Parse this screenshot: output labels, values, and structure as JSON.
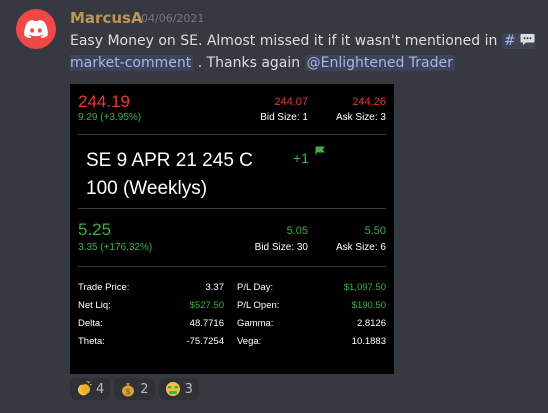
{
  "message": {
    "username": "MarcusA",
    "timestamp": "04/06/2021",
    "text_before": "Easy Money on SE. Almost missed it if it wasn't mentioned in ",
    "channel_prefix": "#",
    "channel_name": "market-comment",
    "text_middle": " . Thanks again ",
    "mention": "@Enlightened Trader"
  },
  "card": {
    "underlying": {
      "last": "244.19",
      "change": "9.29 (+3.95%)",
      "bid": "244.07",
      "ask": "244.26",
      "bid_size": "Bid Size: 1",
      "ask_size": "Ask Size: 3"
    },
    "contract": {
      "line1": "SE 9 APR 21 245 C",
      "line2": "100 (Weeklys)",
      "quantity": "+1"
    },
    "option": {
      "last": "5.25",
      "change": "3.35 (+176.32%)",
      "bid": "5.05",
      "ask": "5.50",
      "bid_size": "Bid Size: 30",
      "ask_size": "Ask Size: 6"
    },
    "stats": {
      "trade_price_label": "Trade Price:",
      "trade_price": "3.37",
      "pl_day_label": "P/L Day:",
      "pl_day": "$1,097.50",
      "net_liq_label": "Net Liq:",
      "net_liq": "$527.50",
      "pl_open_label": "P/L Open:",
      "pl_open": "$190.50",
      "delta_label": "Delta:",
      "delta": "48.7716",
      "gamma_label": "Gamma:",
      "gamma": "2.8126",
      "theta_label": "Theta:",
      "theta": "-75.7254",
      "vega_label": "Vega:",
      "vega": "10.1883"
    }
  },
  "reactions": [
    {
      "emoji": "clap-icon",
      "count": "4"
    },
    {
      "emoji": "money-bag-icon",
      "count": "2"
    },
    {
      "emoji": "money-mouth-face-icon",
      "count": "3"
    }
  ],
  "colors": {
    "brand": "#f04747",
    "username": "#c09552",
    "up": "#3cb04a",
    "down": "#e23b3b"
  }
}
